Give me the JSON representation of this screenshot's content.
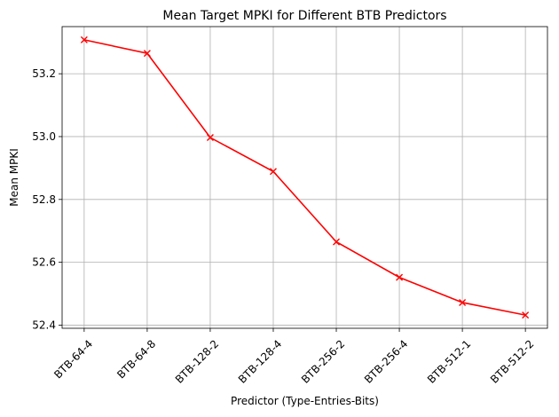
{
  "chart_data": {
    "type": "line",
    "title": "Mean Target MPKI for Different BTB Predictors",
    "xlabel": "Predictor (Type-Entries-Bits)",
    "ylabel": "Mean MPKI",
    "categories": [
      "BTB-64-4",
      "BTB-64-8",
      "BTB-128-2",
      "BTB-128-4",
      "BTB-256-2",
      "BTB-256-4",
      "BTB-512-1",
      "BTB-512-2"
    ],
    "series": [
      {
        "values": [
          53.308,
          53.265,
          52.997,
          52.889,
          52.665,
          52.552,
          52.472,
          52.432
        ],
        "color": "#ff0000",
        "marker": "x"
      }
    ],
    "yticks": [
      "52.4",
      "52.6",
      "52.8",
      "53.0",
      "53.2"
    ],
    "ylim": [
      52.39,
      53.35
    ],
    "grid": true,
    "legend": false,
    "x_tick_rotation": 45,
    "colors": {
      "line": "#ff0000",
      "grid": "#b0b0b0",
      "axes": "#000000"
    }
  }
}
